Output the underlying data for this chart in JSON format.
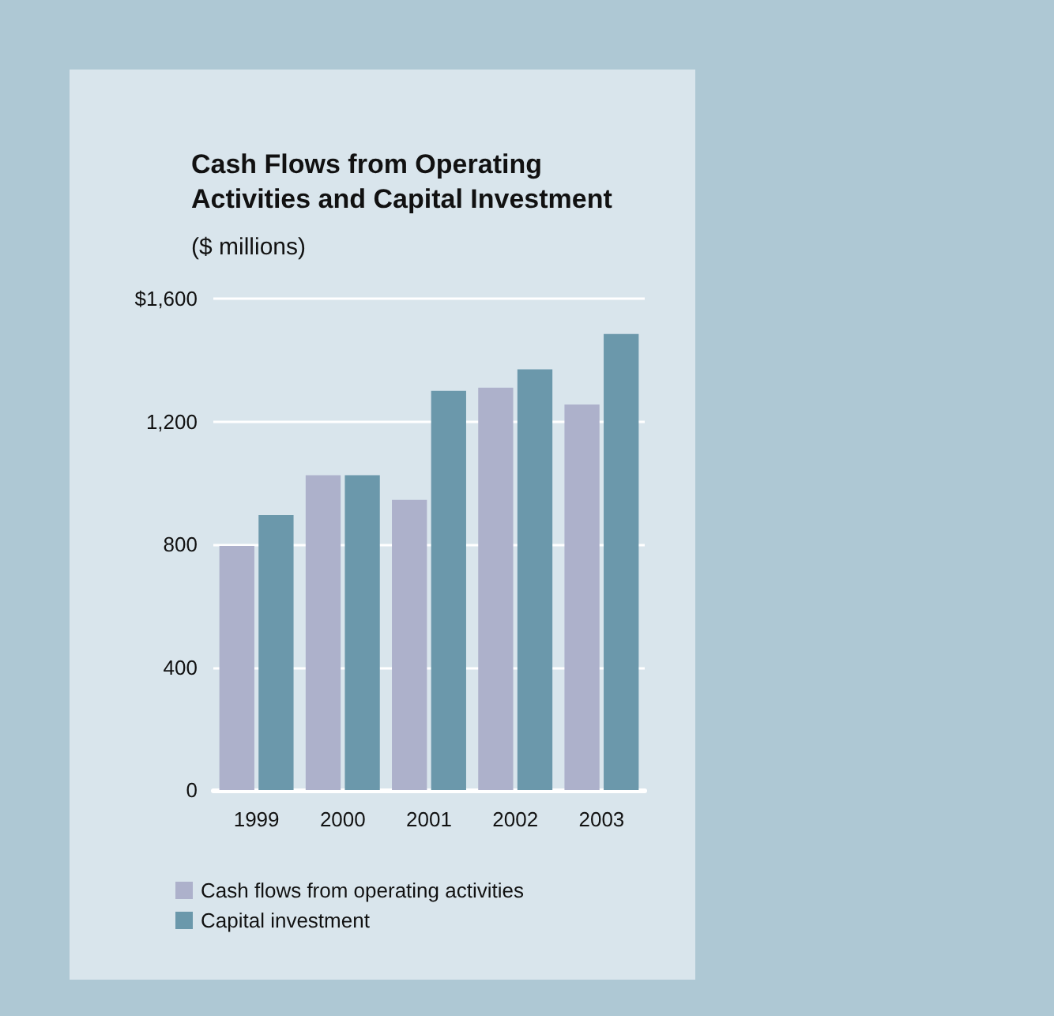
{
  "chart_data": {
    "type": "bar",
    "title": "Cash Flows from Operating Activities and Capital Investment",
    "subtitle": "($ millions)",
    "categories": [
      "1999",
      "2000",
      "2001",
      "2002",
      "2003"
    ],
    "series": [
      {
        "name": "Cash flows from operating activities",
        "color": "#adb1cb",
        "values": [
          795,
          1025,
          945,
          1310,
          1255
        ]
      },
      {
        "name": "Capital investment",
        "color": "#6b98ab",
        "values": [
          895,
          1025,
          1300,
          1370,
          1485
        ]
      }
    ],
    "ylim": [
      0,
      1600
    ],
    "yticks": [
      0,
      400,
      800,
      {
        "value": 1200,
        "label": "1,200"
      },
      {
        "value": 1600,
        "label": "$1,600"
      }
    ],
    "grid": "y",
    "legend": "bottom left"
  }
}
